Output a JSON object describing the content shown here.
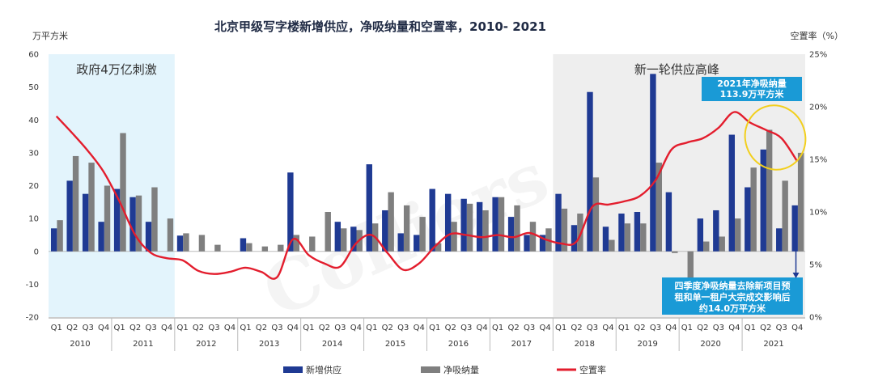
{
  "chart_data": {
    "type": "bar",
    "title": "北京甲级写字楼新增供应，净吸纳量和空置率，2010- 2021",
    "ylabel_left": "万平方米",
    "ylabel_right": "空置率（%）",
    "ylim_left": [
      -20,
      60
    ],
    "ylim_right": [
      0,
      25
    ],
    "left_ticks": [
      "60",
      "50",
      "40",
      "30",
      "20",
      "10",
      "0",
      "-10",
      "-20"
    ],
    "right_ticks": [
      "25%",
      "20%",
      "15%",
      "10%",
      "5%",
      "0%"
    ],
    "quarters": [
      "Q1",
      "Q2",
      "Q3",
      "Q4"
    ],
    "years": [
      "2010",
      "2011",
      "2012",
      "2013",
      "2014",
      "2015",
      "2016",
      "2017",
      "2018",
      "2019",
      "2020",
      "2021"
    ],
    "series": [
      {
        "name": "新增供应",
        "type": "bar",
        "color": "#1f3a93",
        "values": [
          7,
          21.5,
          17.5,
          9,
          19,
          16.5,
          9,
          0,
          4.8,
          0,
          0,
          0,
          4,
          0,
          0,
          24,
          0,
          0,
          9,
          7.5,
          26.5,
          12.5,
          5.5,
          5,
          19,
          17.5,
          16,
          15,
          16.5,
          10.5,
          5,
          5,
          17.5,
          8,
          48.5,
          7.5,
          11.5,
          12,
          54,
          18,
          0,
          10,
          12.5,
          35.5,
          19.5,
          31,
          7,
          14
        ]
      },
      {
        "name": "净吸纳量",
        "type": "bar",
        "color": "#7f7f7f",
        "values": [
          9.5,
          29,
          27,
          20,
          36,
          17,
          19.5,
          10,
          5.5,
          5,
          2,
          0,
          2.5,
          1.5,
          2,
          5,
          4.5,
          12,
          7,
          6.5,
          8.5,
          18,
          14,
          10.5,
          2.5,
          9,
          14.5,
          12.5,
          16.5,
          14,
          9,
          7,
          13,
          11.5,
          22.5,
          3.5,
          8.5,
          8.5,
          27,
          -0.5,
          -8,
          3,
          4.5,
          10,
          25.5,
          37,
          21.5,
          30
        ]
      },
      {
        "name": "空置率",
        "type": "line",
        "color": "#e31d2d",
        "values": [
          19.1,
          17.5,
          15.8,
          13.8,
          11,
          7.8,
          6.1,
          5.6,
          5.4,
          4.4,
          4.1,
          4.3,
          4.7,
          4.3,
          3.8,
          7.4,
          5.9,
          5.1,
          4.8,
          7.0,
          7.8,
          6.1,
          4.5,
          5.1,
          6.7,
          7.9,
          7.8,
          7.6,
          7.8,
          7.6,
          8.0,
          7.4,
          7.0,
          7.2,
          10.5,
          10.7,
          11.0,
          11.5,
          13.0,
          15.9,
          16.6,
          17.0,
          18.0,
          19.5,
          18.5,
          17.8,
          17.0,
          14.8
        ]
      }
    ],
    "zones": [
      {
        "label": "政府4万亿刺激",
        "from": 0,
        "to": 8
      },
      {
        "label": "新一轮供应高峰",
        "from": 32,
        "to": 48
      }
    ],
    "callouts": [
      {
        "lines": [
          "2021年净吸纳量",
          "113.9万平方米"
        ]
      },
      {
        "lines": [
          "四季度净吸纳量去除新项目预",
          "租和单一租户大宗成交影响后",
          "约14.0万平方米"
        ]
      }
    ],
    "watermark": "Colliers",
    "legend_position": "bottom"
  }
}
